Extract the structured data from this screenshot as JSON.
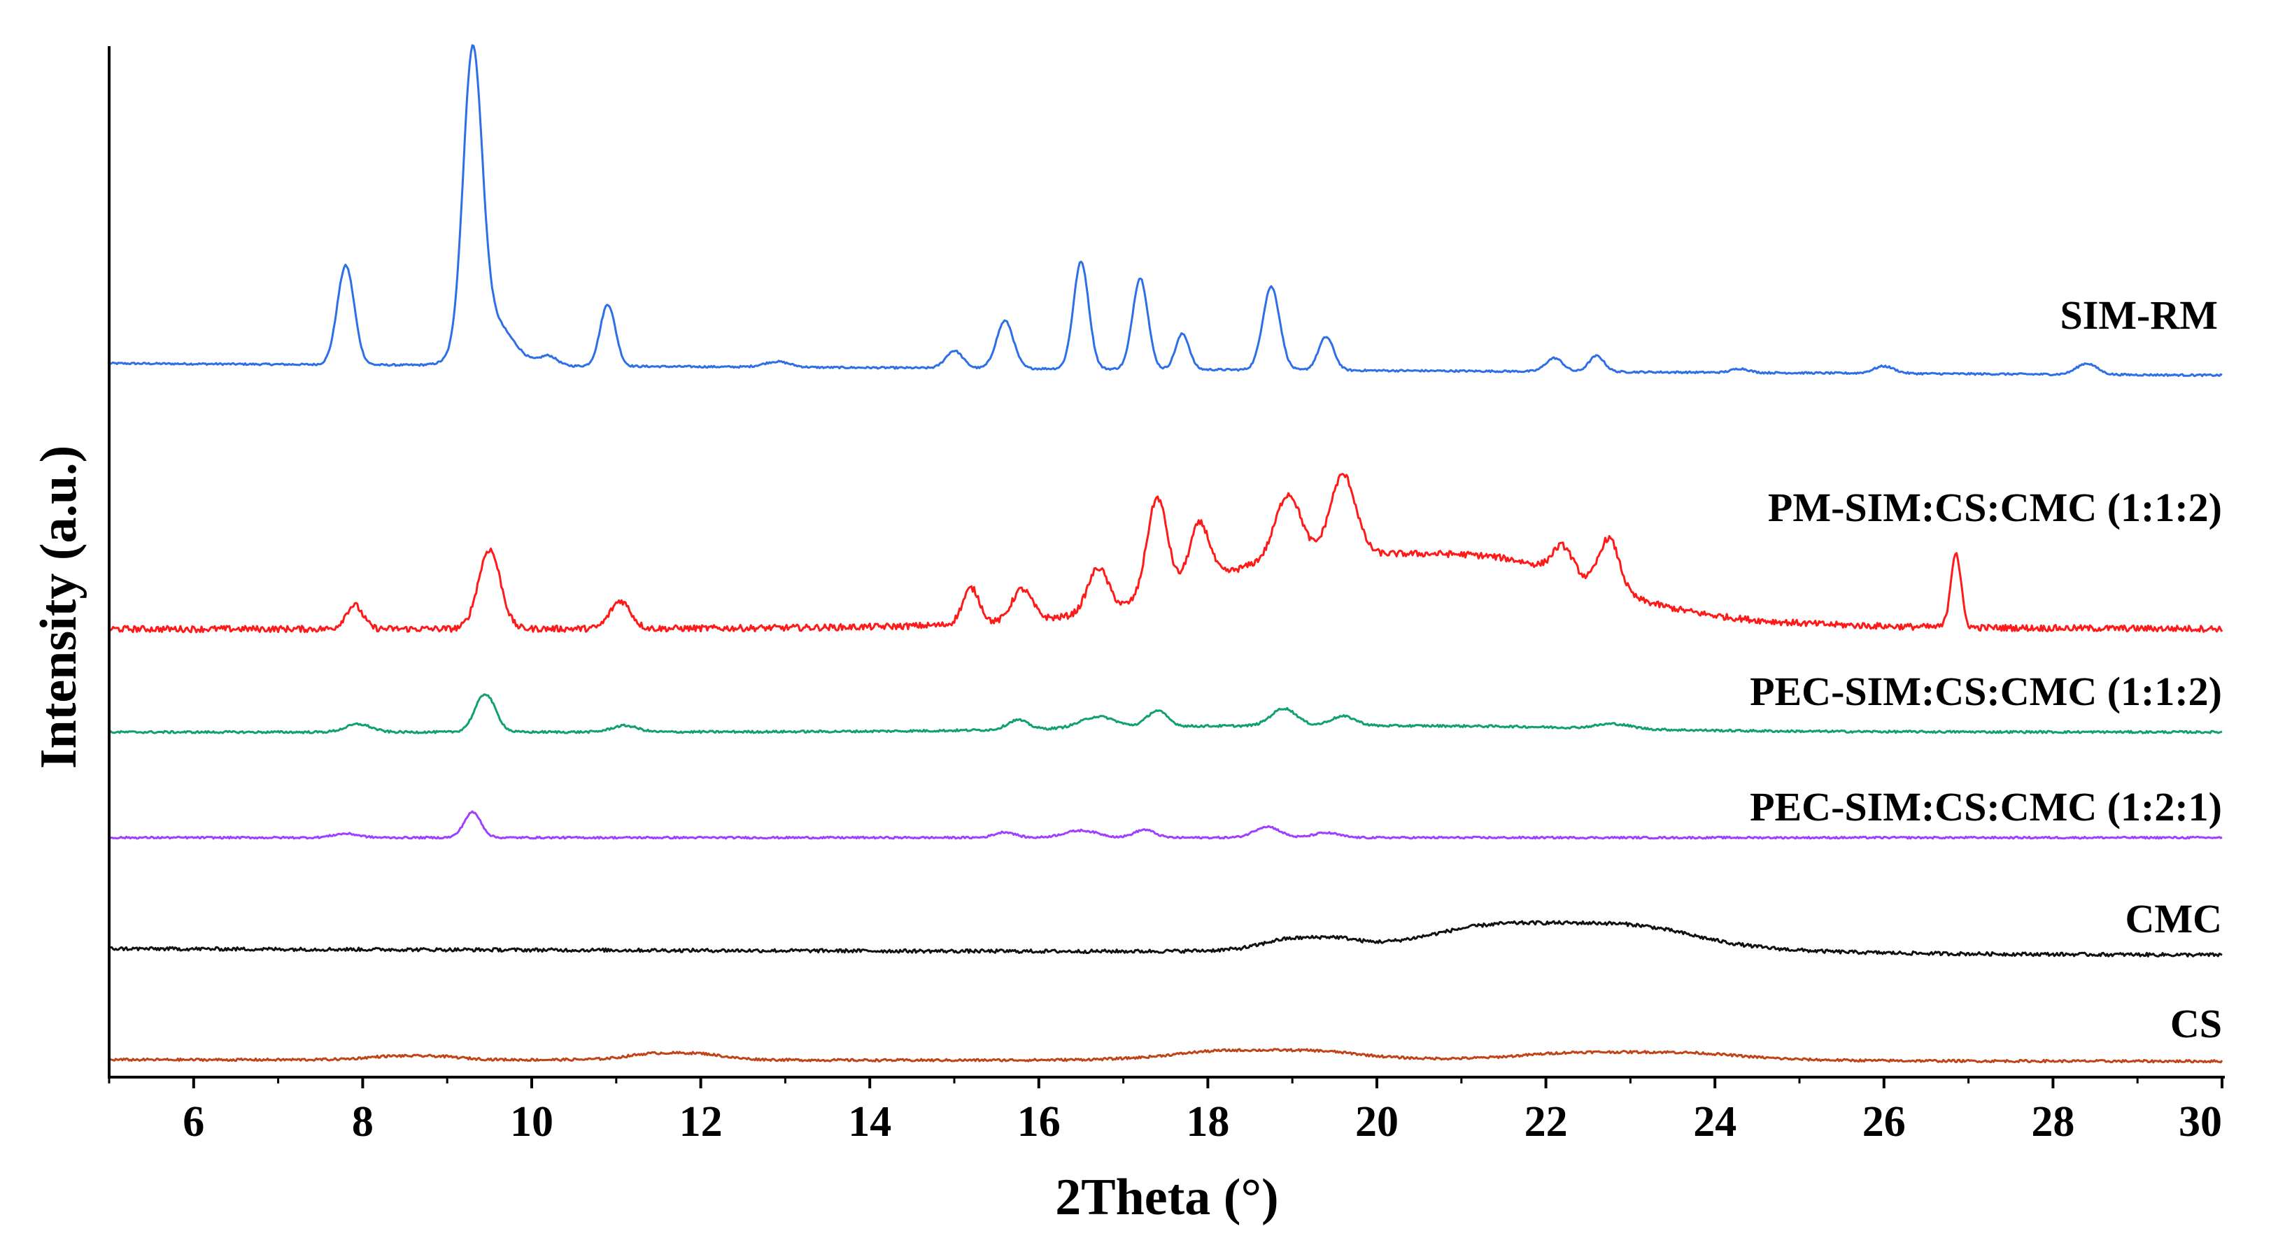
{
  "chart_data": {
    "type": "line",
    "title": "",
    "xlabel": "2Theta (°)",
    "ylabel": "Intensity (a.u.)",
    "xlim": [
      5,
      30
    ],
    "ylim": [
      0,
      13
    ],
    "xticks": [
      6,
      8,
      10,
      12,
      14,
      16,
      18,
      20,
      22,
      24,
      26,
      28,
      30
    ],
    "grid": false,
    "legend": "inline labels at right end of each trace",
    "series": [
      {
        "name": "SIM-RM",
        "color": "#2f6fe6",
        "baseline": 9.0,
        "baseline_drift": -0.15,
        "noise": 0.012,
        "peaks": [
          [
            7.8,
            1.25,
            0.1
          ],
          [
            9.3,
            3.6,
            0.11
          ],
          [
            9.5,
            0.6,
            0.25
          ],
          [
            10.2,
            0.12,
            0.1
          ],
          [
            10.9,
            0.78,
            0.09
          ],
          [
            12.9,
            0.07,
            0.15
          ],
          [
            15.0,
            0.22,
            0.1
          ],
          [
            15.6,
            0.6,
            0.1
          ],
          [
            16.5,
            1.35,
            0.09
          ],
          [
            17.2,
            1.15,
            0.09
          ],
          [
            17.7,
            0.45,
            0.08
          ],
          [
            18.75,
            1.05,
            0.1
          ],
          [
            19.4,
            0.42,
            0.09
          ],
          [
            22.1,
            0.17,
            0.1
          ],
          [
            22.6,
            0.2,
            0.09
          ],
          [
            24.3,
            0.05,
            0.1
          ],
          [
            26.0,
            0.09,
            0.12
          ],
          [
            28.4,
            0.14,
            0.12
          ]
        ]
      },
      {
        "name": "PM-SIM:CS:CMC (1:1:2)",
        "color": "#ff1a1a",
        "baseline": 5.65,
        "baseline_drift": 0.0,
        "noise": 0.04,
        "humps": [
          [
            20.2,
            0.95,
            2.6
          ]
        ],
        "peaks": [
          [
            7.9,
            0.3,
            0.1
          ],
          [
            9.5,
            1.0,
            0.13
          ],
          [
            11.05,
            0.35,
            0.12
          ],
          [
            15.2,
            0.45,
            0.1
          ],
          [
            15.8,
            0.4,
            0.12
          ],
          [
            16.7,
            0.55,
            0.12
          ],
          [
            17.4,
            1.25,
            0.12
          ],
          [
            17.9,
            0.75,
            0.12
          ],
          [
            18.95,
            0.8,
            0.15
          ],
          [
            19.6,
            1.0,
            0.15
          ],
          [
            22.2,
            0.35,
            0.12
          ],
          [
            22.75,
            0.65,
            0.12
          ],
          [
            26.85,
            0.95,
            0.06
          ]
        ]
      },
      {
        "name": "PEC-SIM:CS:CMC (1:1:2)",
        "color": "#12a070",
        "baseline": 4.35,
        "baseline_drift": 0.0,
        "noise": 0.014,
        "humps": [
          [
            19.5,
            0.08,
            3.5
          ]
        ],
        "peaks": [
          [
            7.95,
            0.1,
            0.15
          ],
          [
            9.45,
            0.48,
            0.12
          ],
          [
            11.1,
            0.08,
            0.15
          ],
          [
            15.75,
            0.12,
            0.12
          ],
          [
            16.7,
            0.14,
            0.2
          ],
          [
            17.4,
            0.2,
            0.12
          ],
          [
            18.9,
            0.22,
            0.15
          ],
          [
            19.6,
            0.12,
            0.15
          ],
          [
            22.8,
            0.06,
            0.2
          ]
        ]
      },
      {
        "name": "PEC-SIM:CS:CMC (1:2:1)",
        "color": "#a040ff",
        "baseline": 3.02,
        "baseline_drift": 0.0,
        "noise": 0.012,
        "peaks": [
          [
            7.8,
            0.05,
            0.15
          ],
          [
            9.3,
            0.32,
            0.1
          ],
          [
            15.6,
            0.07,
            0.12
          ],
          [
            16.5,
            0.09,
            0.2
          ],
          [
            17.25,
            0.1,
            0.12
          ],
          [
            18.7,
            0.14,
            0.15
          ],
          [
            19.4,
            0.06,
            0.15
          ]
        ]
      },
      {
        "name": "CMC",
        "color": "#111111",
        "baseline": 1.62,
        "baseline_drift": -0.08,
        "noise": 0.022,
        "humps": [
          [
            19.2,
            0.15,
            0.6
          ],
          [
            22.2,
            0.38,
            1.7
          ]
        ],
        "peaks": []
      },
      {
        "name": "CS",
        "color": "#c0441a",
        "baseline": 0.22,
        "baseline_drift": -0.02,
        "noise": 0.015,
        "humps": [
          [
            8.6,
            0.05,
            0.6
          ],
          [
            11.7,
            0.09,
            0.6
          ],
          [
            18.7,
            0.13,
            1.2
          ],
          [
            23.0,
            0.11,
            1.4
          ]
        ],
        "peaks": []
      }
    ]
  }
}
